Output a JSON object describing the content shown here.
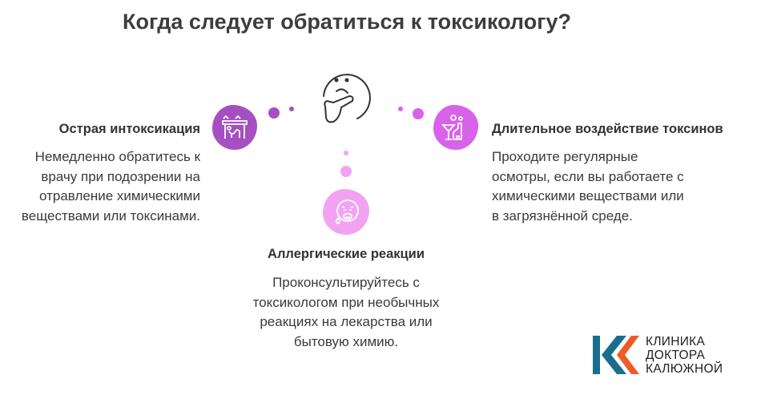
{
  "title": "Когда следует обратиться к токсикологу?",
  "colors": {
    "left": "#a64fc3",
    "right": "#d862ea",
    "bottom": "#f1a3f2",
    "logo_blue": "#1a6e8c",
    "logo_orange": "#f05a26"
  },
  "center_icon": "thinking-face-icon",
  "items": [
    {
      "title": "Острая интоксикация",
      "description": "Немедленно обратитесь к врачу при подозрении на отравление химическими веществами или токсинами.",
      "icon": "poisoning-person-icon"
    },
    {
      "title": "Длительное воздействие токсинов",
      "description": "Проходите регулярные осмотры, если вы работаете с химическими веществами или в загрязнённой среде.",
      "icon": "chemical-factory-icon"
    },
    {
      "title": "Аллергические реакции",
      "description": "Проконсультируйтесь с токсикологом при необычных реакциях на лекарства или бытовую химию.",
      "icon": "allergic-face-icon"
    }
  ],
  "logo": {
    "line1": "КЛИНИКА",
    "line2": "ДОКТОРА",
    "line3": "КАЛЮЖНОЙ"
  }
}
